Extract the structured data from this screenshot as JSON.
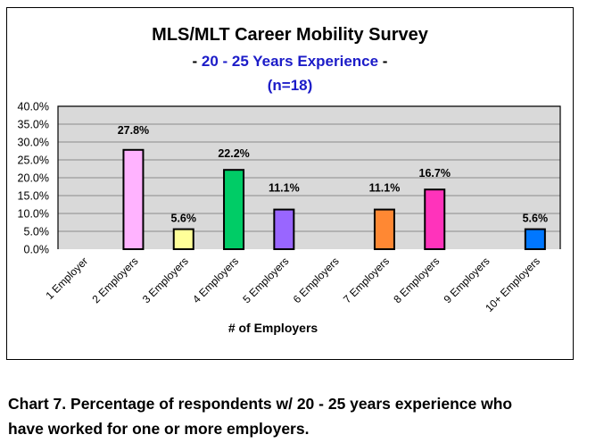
{
  "chart_data": {
    "type": "bar",
    "title": "MLS/MLT Career Mobility Survey",
    "subtitle_prefix": "- ",
    "subtitle": "20 - 25 Years Experience",
    "subtitle_suffix": " -",
    "sample_size": "(n=18)",
    "xlabel": "# of Employers",
    "ylabel": "",
    "ylim": [
      0,
      40
    ],
    "ytick_values": [
      0,
      5,
      10,
      15,
      20,
      25,
      30,
      35,
      40
    ],
    "ytick_labels": [
      "0.0%",
      "5.0%",
      "10.0%",
      "15.0%",
      "20.0%",
      "25.0%",
      "30.0%",
      "35.0%",
      "40.0%"
    ],
    "grid": true,
    "legend": "none",
    "categories": [
      "1 Employer",
      "2 Employers",
      "3 Employers",
      "4 Employers",
      "5 Employers",
      "6 Employers",
      "7 Employers",
      "8 Employers",
      "9 Employers",
      "10+ Employers"
    ],
    "values": [
      0,
      27.8,
      5.6,
      22.2,
      11.1,
      0,
      11.1,
      16.7,
      0,
      5.6
    ],
    "data_labels": [
      "",
      "27.8%",
      "5.6%",
      "22.2%",
      "11.1%",
      "",
      "11.1%",
      "16.7%",
      "",
      "5.6%"
    ],
    "bar_colors": [
      "#cccccc",
      "#ffb3ff",
      "#ffff99",
      "#00cc66",
      "#9966ff",
      "#cccccc",
      "#ff8833",
      "#ff33bb",
      "#cccccc",
      "#0077ff"
    ],
    "plot_background": "#d9d9d9",
    "gridline_color": "#8c8c8c"
  },
  "caption": {
    "line1": "Chart 7. Percentage of respondents w/ 20 - 25 years experience who",
    "line2": "have worked for one or more employers."
  }
}
